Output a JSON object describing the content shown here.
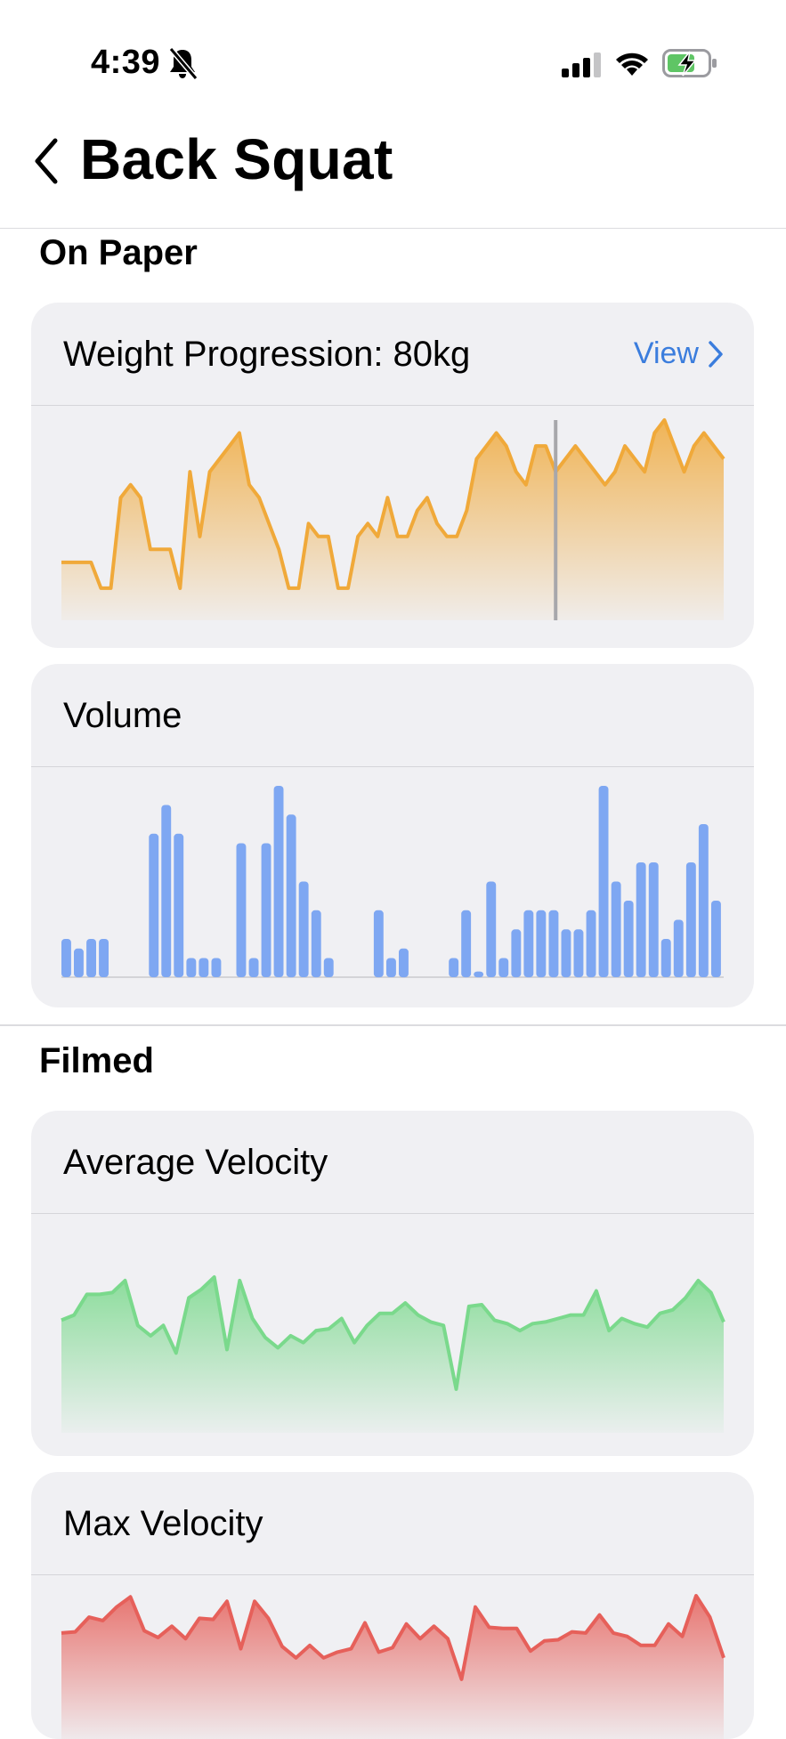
{
  "status_bar": {
    "time": "4:39",
    "icons": [
      "bell-slash-icon",
      "cellular-signal-icon",
      "wifi-icon",
      "battery-charging-icon"
    ]
  },
  "nav": {
    "back_icon": "chevron-left-icon",
    "title": "Back Squat"
  },
  "sections": {
    "on_paper": "On Paper",
    "filmed": "Filmed"
  },
  "cards": {
    "weight": {
      "title": "Weight Progression: 80kg",
      "view_label": "View"
    },
    "volume": {
      "title": "Volume"
    },
    "avg_velocity": {
      "title": "Average Velocity"
    },
    "max_velocity": {
      "title": "Max Velocity"
    }
  },
  "colors": {
    "orange": "#f0a93a",
    "blue": "#7ea7f2",
    "green": "#7ad98c",
    "red": "#e6605a",
    "link": "#3b7ddd",
    "card_bg": "#f0f0f3"
  },
  "chart_data": [
    {
      "type": "area",
      "series": [
        {
          "values": [
            4,
            4,
            4,
            4,
            2,
            2,
            9,
            10,
            9,
            5,
            5,
            5,
            2,
            11,
            6,
            11,
            12,
            13,
            14,
            10,
            9,
            7,
            5,
            2,
            2,
            7,
            6,
            6,
            2,
            2,
            6,
            7,
            6,
            9,
            6,
            6,
            8,
            9,
            7,
            6,
            6,
            8,
            12,
            13,
            14,
            13,
            11,
            10,
            13,
            13,
            11,
            12,
            13,
            12,
            11,
            10,
            11,
            13,
            12,
            11,
            14,
            15,
            13,
            11,
            13,
            14,
            13,
            12
          ]
        }
      ],
      "marker_index": 50
    },
    {
      "type": "bar",
      "series": [
        {
          "values": [
            2,
            1.5,
            2,
            2,
            0,
            0,
            0,
            7.5,
            9,
            7.5,
            1,
            1,
            1,
            0,
            7,
            1,
            7,
            10,
            8.5,
            5,
            3.5,
            1,
            0,
            0,
            0,
            3.5,
            1,
            1.5,
            0,
            0,
            0,
            1,
            3.5,
            0.3,
            5,
            1,
            2.5,
            3.5,
            3.5,
            3.5,
            2.5,
            2.5,
            3.5,
            10,
            5,
            4,
            6,
            6,
            2,
            3,
            6,
            8,
            4
          ]
        }
      ]
    },
    {
      "type": "area",
      "series": [
        {
          "values": [
            5.5,
            5.8,
            7,
            7,
            7.1,
            7.8,
            5.2,
            4.6,
            5.2,
            3.6,
            6.8,
            7.3,
            8,
            3.8,
            7.8,
            5.6,
            4.5,
            3.9,
            4.6,
            4.2,
            4.9,
            5,
            5.6,
            4.2,
            5.2,
            5.9,
            5.9,
            6.5,
            5.8,
            5.4,
            5.2,
            1.5,
            6.3,
            6.4,
            5.5,
            5.3,
            4.9,
            5.3,
            5.4,
            5.6,
            5.8,
            5.8,
            7.2,
            4.9,
            5.6,
            5.3,
            5.1,
            5.9,
            6.1,
            6.8,
            7.8,
            7.1,
            5.4
          ]
        }
      ]
    },
    {
      "type": "area",
      "series": [
        {
          "values": [
            6,
            6.1,
            7.4,
            7.1,
            8.3,
            9.2,
            6.2,
            5.6,
            6.6,
            5.5,
            7.3,
            7.2,
            8.8,
            4.6,
            8.8,
            7.3,
            4.8,
            3.8,
            4.9,
            3.8,
            4.3,
            4.6,
            6.9,
            4.3,
            4.7,
            6.8,
            5.5,
            6.6,
            5.5,
            1.9,
            8.3,
            6.5,
            6.4,
            6.4,
            4.4,
            5.3,
            5.4,
            6.1,
            6,
            7.6,
            6,
            5.7,
            4.9,
            4.9,
            6.8,
            5.7,
            9.3,
            7.4,
            3.8
          ]
        }
      ]
    }
  ]
}
